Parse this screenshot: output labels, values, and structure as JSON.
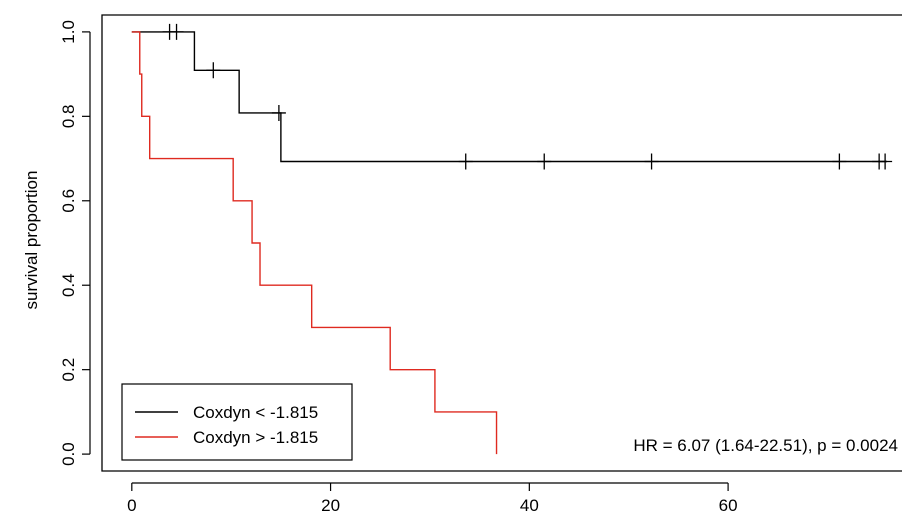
{
  "chart_data": {
    "type": "line",
    "subtype": "kaplan-meier",
    "title": "",
    "xlabel": "",
    "ylabel": "survival proportion",
    "xlim": [
      -3,
      77.5
    ],
    "ylim": [
      -0.04,
      1.04
    ],
    "x_ticks": [
      0,
      20,
      40,
      60
    ],
    "y_ticks": [
      0.0,
      0.2,
      0.4,
      0.6,
      0.8,
      1.0
    ],
    "x_tick_labels": [
      "0",
      "20",
      "40",
      "60"
    ],
    "y_tick_labels": [
      "0.0",
      "0.2",
      "0.4",
      "0.6",
      "0.8",
      "1.0"
    ],
    "grid": false,
    "legend_position": "bottom-left",
    "series": [
      {
        "name": "Coxdyn < -1.815",
        "color": "#000000",
        "step": [
          {
            "x": 0,
            "y": 1.0
          },
          {
            "x": 6.3,
            "y": 0.909
          },
          {
            "x": 10.8,
            "y": 0.808
          },
          {
            "x": 15.0,
            "y": 0.693
          },
          {
            "x": 76.0,
            "y": 0.693
          }
        ],
        "censored": [
          {
            "x": 3.8,
            "y": 1.0
          },
          {
            "x": 4.5,
            "y": 1.0
          },
          {
            "x": 8.2,
            "y": 0.909
          },
          {
            "x": 14.8,
            "y": 0.808
          },
          {
            "x": 33.6,
            "y": 0.693
          },
          {
            "x": 41.5,
            "y": 0.693
          },
          {
            "x": 52.3,
            "y": 0.693
          },
          {
            "x": 71.2,
            "y": 0.693
          },
          {
            "x": 75.2,
            "y": 0.693
          },
          {
            "x": 75.8,
            "y": 0.693
          }
        ]
      },
      {
        "name": "Coxdyn > -1.815",
        "color": "#df2a20",
        "step": [
          {
            "x": 0,
            "y": 1.0
          },
          {
            "x": 0.8,
            "y": 0.9
          },
          {
            "x": 1.0,
            "y": 0.8
          },
          {
            "x": 1.8,
            "y": 0.7
          },
          {
            "x": 10.2,
            "y": 0.6
          },
          {
            "x": 12.1,
            "y": 0.5
          },
          {
            "x": 12.9,
            "y": 0.4
          },
          {
            "x": 18.1,
            "y": 0.3
          },
          {
            "x": 26.0,
            "y": 0.2
          },
          {
            "x": 30.5,
            "y": 0.1
          },
          {
            "x": 36.7,
            "y": 0.0
          }
        ],
        "censored": []
      }
    ],
    "annotation": "HR = 6.07 (1.64-22.51), p = 0.0024"
  }
}
